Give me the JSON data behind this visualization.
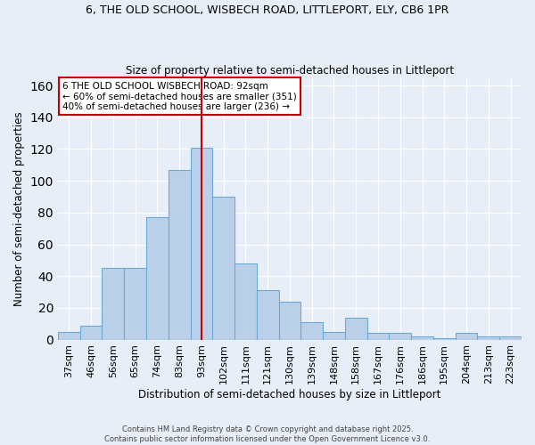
{
  "title_line1": "6, THE OLD SCHOOL, WISBECH ROAD, LITTLEPORT, ELY, CB6 1PR",
  "title_line2": "Size of property relative to semi-detached houses in Littleport",
  "categories": [
    "37sqm",
    "46sqm",
    "56sqm",
    "65sqm",
    "74sqm",
    "83sqm",
    "93sqm",
    "102sqm",
    "111sqm",
    "121sqm",
    "130sqm",
    "139sqm",
    "148sqm",
    "158sqm",
    "167sqm",
    "176sqm",
    "186sqm",
    "195sqm",
    "204sqm",
    "213sqm",
    "223sqm"
  ],
  "values": [
    5,
    9,
    45,
    45,
    77,
    107,
    121,
    90,
    48,
    31,
    24,
    11,
    5,
    14,
    4,
    4,
    2,
    1,
    4,
    2,
    2
  ],
  "bar_color": "#bad0e8",
  "bar_edge_color": "#6aaad4",
  "bar_linewidth": 0.8,
  "vline_x_index": 6,
  "vline_color": "#cc0000",
  "xlabel": "Distribution of semi-detached houses by size in Littleport",
  "ylabel": "Number of semi-detached properties",
  "ylim": [
    0,
    165
  ],
  "yticks": [
    0,
    20,
    40,
    60,
    80,
    100,
    120,
    140,
    160
  ],
  "legend_title": "6 THE OLD SCHOOL WISBECH ROAD: 92sqm",
  "legend_line1": "← 60% of semi-detached houses are smaller (351)",
  "legend_line2": "40% of semi-detached houses are larger (236) →",
  "legend_box_color": "white",
  "legend_box_edge": "#cc0000",
  "bg_color": "#e8eef7",
  "grid_color": "white",
  "footer1": "Contains HM Land Registry data © Crown copyright and database right 2025.",
  "footer2": "Contains public sector information licensed under the Open Government Licence v3.0."
}
